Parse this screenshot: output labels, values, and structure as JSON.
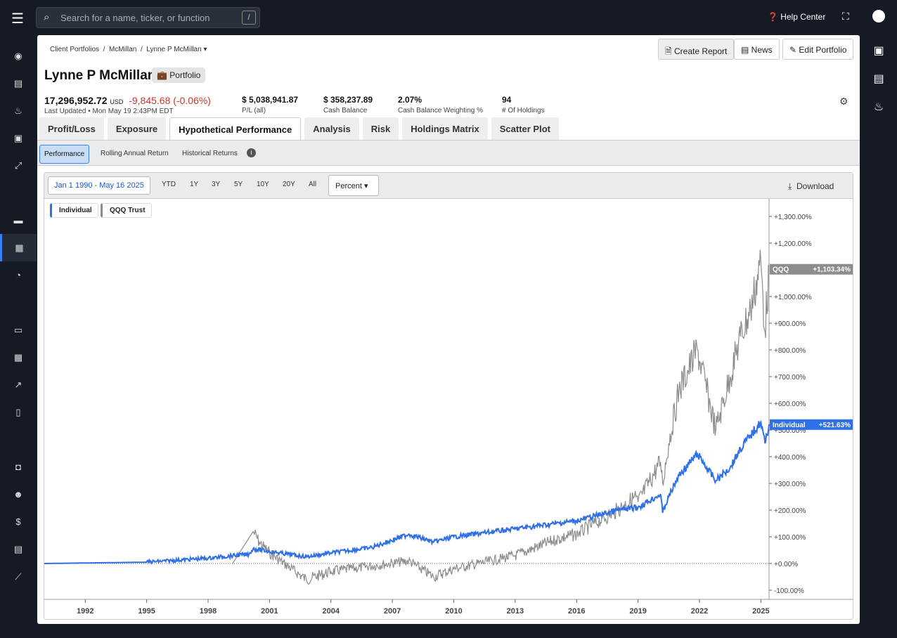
{
  "topbar": {
    "search_placeholder": "Search for a name, ticker, or function",
    "search_shortcut": "/",
    "help": "Help Center"
  },
  "breadcrumb": [
    "Client Portfolios",
    "McMillan",
    "Lynne P McMillan"
  ],
  "header": {
    "title": "Lynne P McMillan",
    "badge": "Portfolio",
    "create_report": "Create Report",
    "news": "News",
    "edit": "Edit Portfolio"
  },
  "stats": {
    "value": "17,296,952.72",
    "currency": "USD",
    "change": "-9,845.68",
    "change_pct": "(-0.06%)",
    "updated": "Last Updated • Mon May 19 2:43PM EDT",
    "items": [
      {
        "v": "$ 5,038,941.87",
        "l": "P/L (all)"
      },
      {
        "v": "$ 358,237.89",
        "l": "Cash Balance"
      },
      {
        "v": "2.07%",
        "l": "Cash Balance Weighting %"
      },
      {
        "v": "94",
        "l": "# Of Holdings"
      }
    ]
  },
  "tabs": [
    "Profit/Loss",
    "Exposure",
    "Hypothetical Performance",
    "Analysis",
    "Risk",
    "Holdings Matrix",
    "Scatter Plot"
  ],
  "subtabs": [
    "Performance",
    "Rolling Annual Return",
    "Historical Returns"
  ],
  "toolbar": {
    "range": "Jan 1 1990 - May 16 2025",
    "periods": [
      "YTD",
      "1Y",
      "3Y",
      "5Y",
      "10Y",
      "20Y",
      "All"
    ],
    "mode": "Percent",
    "download": "Download"
  },
  "colors": {
    "individual": "#2f6fe8",
    "qqq": "#8c8c8c",
    "accent": "#3b82f6",
    "negative": "#c0392b"
  },
  "chart_data": {
    "type": "line",
    "xlim": [
      1990,
      2025.4
    ],
    "ylim": [
      -130,
      1340
    ],
    "x_ticks": [
      "1992",
      "1995",
      "1998",
      "2001",
      "2004",
      "2007",
      "2010",
      "2013",
      "2016",
      "2019",
      "2022",
      "2025"
    ],
    "y_ticks": [
      "+1,300.00%",
      "+1,200.00%",
      "+1,000.00%",
      "+900.00%",
      "+800.00%",
      "+700.00%",
      "+600.00%",
      "+500.00%",
      "+400.00%",
      "+300.00%",
      "+200.00%",
      "+100.00%",
      "+0.00%",
      "-100.00%"
    ],
    "series": [
      {
        "name": "Individual",
        "label": "Individual",
        "last": "+521.63%",
        "points": [
          [
            1990,
            0
          ],
          [
            1995,
            5
          ],
          [
            1998,
            20
          ],
          [
            2000,
            35
          ],
          [
            2000.2,
            55
          ],
          [
            2001,
            45
          ],
          [
            2002.8,
            25
          ],
          [
            2004,
            40
          ],
          [
            2006,
            60
          ],
          [
            2007.8,
            110
          ],
          [
            2009,
            80
          ],
          [
            2010,
            100
          ],
          [
            2013,
            130
          ],
          [
            2015,
            150
          ],
          [
            2016,
            160
          ],
          [
            2018,
            200
          ],
          [
            2019,
            210
          ],
          [
            2020.1,
            260
          ],
          [
            2020.2,
            190
          ],
          [
            2020.5,
            250
          ],
          [
            2021,
            330
          ],
          [
            2021.9,
            410
          ],
          [
            2022.8,
            310
          ],
          [
            2023.5,
            360
          ],
          [
            2024,
            430
          ],
          [
            2024.5,
            480
          ],
          [
            2025,
            530
          ],
          [
            2025.2,
            450
          ],
          [
            2025.4,
            521.63
          ]
        ]
      },
      {
        "name": "QQQ Trust",
        "label": "QQQ",
        "last": "+1,103.34%",
        "points": [
          [
            1999.2,
            0
          ],
          [
            2000.2,
            120
          ],
          [
            2000.5,
            80
          ],
          [
            2001,
            40
          ],
          [
            2002.8,
            -60
          ],
          [
            2004,
            -30
          ],
          [
            2007.8,
            10
          ],
          [
            2009,
            -50
          ],
          [
            2010,
            -20
          ],
          [
            2013,
            30
          ],
          [
            2015,
            90
          ],
          [
            2016,
            110
          ],
          [
            2018,
            200
          ],
          [
            2018.9,
            250
          ],
          [
            2019,
            230
          ],
          [
            2020.1,
            380
          ],
          [
            2020.2,
            300
          ],
          [
            2020.5,
            450
          ],
          [
            2021,
            650
          ],
          [
            2021.9,
            800
          ],
          [
            2022.8,
            500
          ],
          [
            2023.5,
            700
          ],
          [
            2024,
            850
          ],
          [
            2024.5,
            950
          ],
          [
            2025,
            1130
          ],
          [
            2025.2,
            870
          ],
          [
            2025.4,
            1103.34
          ]
        ]
      }
    ]
  }
}
